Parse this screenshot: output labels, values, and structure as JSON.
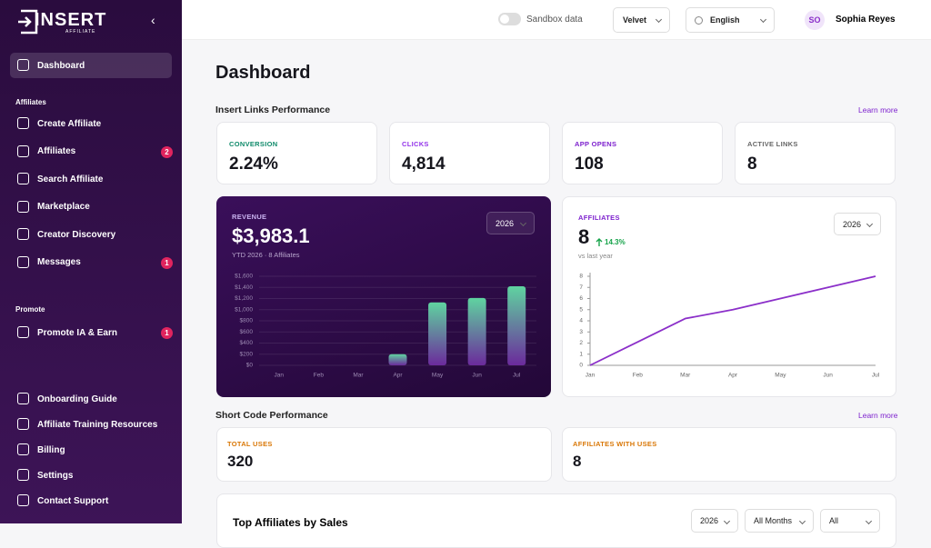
{
  "sidebar": {
    "logo": "INSERT",
    "logo_sub": "AFFILIATE",
    "top_items": [
      {
        "label": "Dashboard"
      }
    ],
    "sections": [
      {
        "title": "Affiliates",
        "items": [
          {
            "label": "Create Affiliate"
          },
          {
            "label": "Affiliates",
            "badge": "2"
          },
          {
            "label": "Search Affiliate"
          },
          {
            "label": "Marketplace"
          },
          {
            "label": "Creator Discovery"
          },
          {
            "label": "Messages",
            "badge": "1"
          }
        ]
      },
      {
        "title": "Promote",
        "items": [
          {
            "label": "Promote IA & Earn",
            "badge": "1"
          }
        ]
      }
    ],
    "bottom_items": [
      {
        "label": "Onboarding Guide"
      },
      {
        "label": "Affiliate Training Resources"
      },
      {
        "label": "Billing"
      },
      {
        "label": "Settings"
      },
      {
        "label": "Contact Support"
      }
    ]
  },
  "topbar": {
    "sandbox": "Sandbox data",
    "workspace": "Velvet",
    "language": "English",
    "avatar": "SO",
    "user": "Sophia Reyes"
  },
  "page_title": "Dashboard",
  "links_section": {
    "title": "Insert Links Performance",
    "link": "Learn more",
    "cards": [
      {
        "label": "CONVERSION",
        "value": "2.24%"
      },
      {
        "label": "CLICKS",
        "value": "4,814"
      },
      {
        "label": "APP OPENS",
        "value": "108"
      },
      {
        "label": "ACTIVE LINKS",
        "value": "8"
      }
    ]
  },
  "chart_data": [
    {
      "type": "bar",
      "title": "REVENUE",
      "headline": "$3,983.1",
      "subtitle": "YTD 2026 · 8 Affiliates",
      "select": "2026",
      "categories": [
        "Jan",
        "Feb",
        "Mar",
        "Apr",
        "May",
        "Jun",
        "Jul"
      ],
      "values": [
        0,
        0,
        0,
        200,
        1130,
        1210,
        1420
      ],
      "color": "#5fd3a0",
      "ylim": [
        0,
        1600
      ],
      "yticks": [
        {
          "value": 0,
          "label": "$0"
        },
        {
          "value": 200,
          "label": "$200"
        },
        {
          "value": 400,
          "label": "$400"
        },
        {
          "value": 600,
          "label": "$600"
        },
        {
          "value": 800,
          "label": "$800"
        },
        {
          "value": 1000,
          "label": "$1,000"
        },
        {
          "value": 1200,
          "label": "$1,200"
        },
        {
          "value": 1400,
          "label": "$1,400"
        },
        {
          "value": 1600,
          "label": "$1,600"
        }
      ],
      "grid": true
    },
    {
      "type": "line",
      "title": "AFFILIATES",
      "headline": "8",
      "change": "14.3%",
      "subtitle": "vs last year",
      "select": "2026",
      "categories": [
        "Jan",
        "Feb",
        "Mar",
        "Apr",
        "May",
        "Jun",
        "Jul"
      ],
      "values": [
        0,
        2.1,
        4.2,
        5,
        6,
        7,
        8
      ],
      "color": "#8b2fc9",
      "ylim": [
        0,
        8
      ],
      "yticks": [
        0,
        1,
        2,
        3,
        4,
        5,
        6,
        7,
        8
      ],
      "grid": false
    }
  ],
  "shortcode_section": {
    "title": "Short Code Performance",
    "link": "Learn more",
    "cards": [
      {
        "label": "TOTAL USES",
        "value": "320"
      },
      {
        "label": "AFFILIATES WITH USES",
        "value": "8"
      }
    ]
  },
  "top_affiliates": {
    "title": "Top Affiliates by Sales",
    "filters": [
      "2026",
      "All Months",
      "All"
    ]
  }
}
